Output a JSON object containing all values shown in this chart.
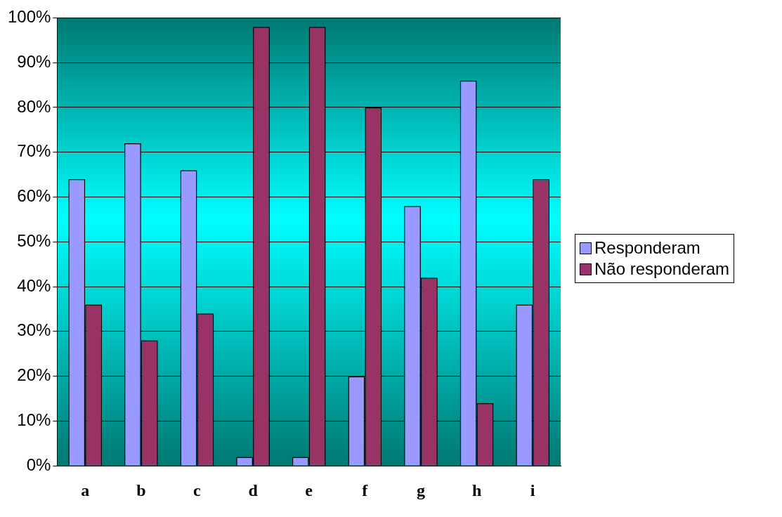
{
  "chart_data": {
    "type": "bar",
    "categories": [
      "a",
      "b",
      "c",
      "d",
      "e",
      "f",
      "g",
      "h",
      "i"
    ],
    "series": [
      {
        "name": "Responderam",
        "color": "#9999ff",
        "values": [
          64,
          72,
          66,
          2,
          2,
          20,
          58,
          86,
          36
        ]
      },
      {
        "name": "Não responderam",
        "color": "#993366",
        "values": [
          36,
          28,
          34,
          98,
          98,
          80,
          42,
          14,
          64
        ]
      }
    ],
    "ylim": [
      0,
      100
    ],
    "yticks": [
      {
        "value": 0,
        "label": "0%"
      },
      {
        "value": 10,
        "label": "10%"
      },
      {
        "value": 20,
        "label": "20%"
      },
      {
        "value": 30,
        "label": "30%"
      },
      {
        "value": 40,
        "label": "40%"
      },
      {
        "value": 50,
        "label": "50%"
      },
      {
        "value": 60,
        "label": "60%"
      },
      {
        "value": 70,
        "label": "70%"
      },
      {
        "value": 80,
        "label": "80%"
      },
      {
        "value": 90,
        "label": "90%"
      },
      {
        "value": 100,
        "label": "100%"
      }
    ],
    "grid": "y",
    "legend": "right"
  }
}
